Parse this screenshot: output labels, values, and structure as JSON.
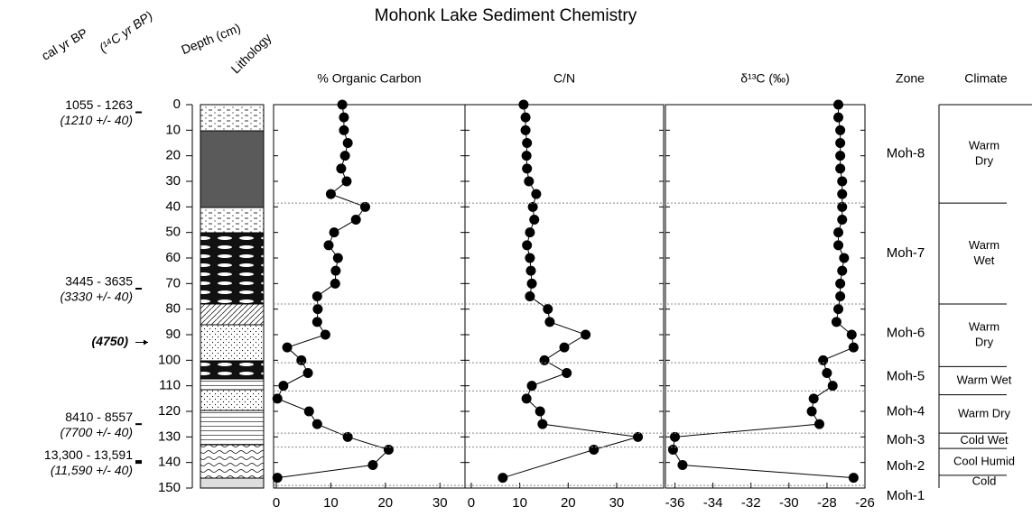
{
  "chart_data": {
    "type": "depth-profile",
    "title": "Mohonk Lake Sediment Chemistry",
    "header_labels": {
      "cal": "cal yr BP",
      "c14": "(¹⁴C yr BP)",
      "depth": "Depth (cm)",
      "lithology": "Lithology",
      "zone": "Zone",
      "climate": "Climate"
    },
    "ylim": [
      0,
      150
    ],
    "yticks": [
      0,
      10,
      20,
      30,
      40,
      50,
      60,
      70,
      80,
      90,
      100,
      110,
      120,
      130,
      140,
      150
    ],
    "color": "#000000",
    "ages": [
      {
        "cal": "1055 - 1263",
        "c14": "(1210 +/- 40)",
        "depth": 3
      },
      {
        "cal": "3445 - 3635",
        "c14": "(3330 +/- 40)",
        "depth": 72
      },
      {
        "c14": "(4750)",
        "depth": 93
      },
      {
        "cal": "8410 - 8557",
        "c14": "(7700 +/- 40)",
        "depth": 125
      },
      {
        "cal": "13,300 - 13,591",
        "c14": "(11,590 +/- 40)",
        "depth": 139.8
      }
    ],
    "panels": [
      {
        "title": "% Organic Carbon",
        "xlim": [
          -0.5,
          34.6
        ],
        "xticks": [
          0,
          10,
          20,
          30
        ],
        "depths": [
          0,
          5,
          10,
          15,
          20,
          25,
          30,
          35,
          40,
          45,
          50,
          55,
          60,
          65,
          70,
          75,
          80,
          85,
          90,
          95,
          100,
          105,
          110,
          115,
          120,
          125,
          130,
          135,
          141,
          146
        ],
        "values": [
          12.1,
          12.4,
          12.4,
          13.1,
          12.6,
          11.9,
          12.9,
          10.0,
          16.3,
          14.6,
          10.6,
          9.6,
          11.3,
          10.9,
          10.8,
          7.5,
          7.6,
          7.5,
          9.0,
          2.0,
          4.6,
          5.8,
          1.3,
          0.2,
          6.0,
          7.5,
          13.1,
          20.6,
          17.7,
          0.2
        ]
      },
      {
        "title": "C/N",
        "xlim": [
          -1.3,
          39.7
        ],
        "xticks": [
          0,
          10,
          20,
          30
        ],
        "depths": [
          0,
          5,
          10,
          15,
          20,
          25,
          30,
          35,
          40,
          45,
          50,
          55,
          60,
          65,
          70,
          75,
          80,
          85,
          90,
          95,
          100,
          105,
          110,
          115,
          120,
          125,
          130,
          135,
          146
        ],
        "values": [
          10.8,
          11.2,
          11.2,
          11.5,
          11.4,
          11.5,
          11.9,
          13.4,
          12.7,
          13.0,
          12.1,
          11.5,
          12.1,
          12.3,
          12.5,
          12.1,
          15.8,
          16.2,
          23.6,
          19.2,
          15.1,
          19.7,
          12.5,
          11.4,
          14.2,
          14.7,
          34.4,
          25.3,
          6.5
        ]
      },
      {
        "title": "δ¹³C (‰)",
        "xlim": [
          -36.5,
          -26
        ],
        "xticks": [
          -36,
          -34,
          -32,
          -30,
          -28,
          -26
        ],
        "depths": [
          0,
          5,
          10,
          15,
          20,
          25,
          30,
          35,
          40,
          45,
          50,
          55,
          60,
          65,
          70,
          75,
          80,
          85,
          90,
          95,
          100,
          105,
          110,
          115,
          120,
          125,
          130,
          135,
          141,
          146
        ],
        "values": [
          -27.4,
          -27.4,
          -27.3,
          -27.3,
          -27.3,
          -27.3,
          -27.2,
          -27.2,
          -27.2,
          -27.2,
          -27.4,
          -27.4,
          -27.1,
          -27.2,
          -27.3,
          -27.3,
          -27.4,
          -27.5,
          -26.7,
          -26.6,
          -28.2,
          -28.0,
          -27.7,
          -28.7,
          -28.8,
          -28.4,
          -36.0,
          -36.1,
          -35.6,
          -26.6
        ]
      }
    ],
    "zones": {
      "boundaries": [
        38.5,
        78,
        101,
        112,
        128.5,
        134,
        149
      ],
      "names": [
        "Moh-8",
        "Moh-7",
        "Moh-6",
        "Moh-5",
        "Moh-4",
        "Moh-3",
        "Moh-2",
        "Moh-1"
      ]
    },
    "climate": {
      "boundaries": [
        38.5,
        78,
        102.5,
        113.5,
        128.5,
        134.5,
        145
      ],
      "labels": [
        [
          "Warm",
          "Dry"
        ],
        [
          "Warm",
          "Wet"
        ],
        [
          "Warm",
          "Dry"
        ],
        [
          "Warm Wet"
        ],
        [
          "Warm Dry"
        ],
        [
          "Cold Wet"
        ],
        [
          "Cool Humid"
        ],
        [
          "Cold"
        ]
      ]
    }
  }
}
